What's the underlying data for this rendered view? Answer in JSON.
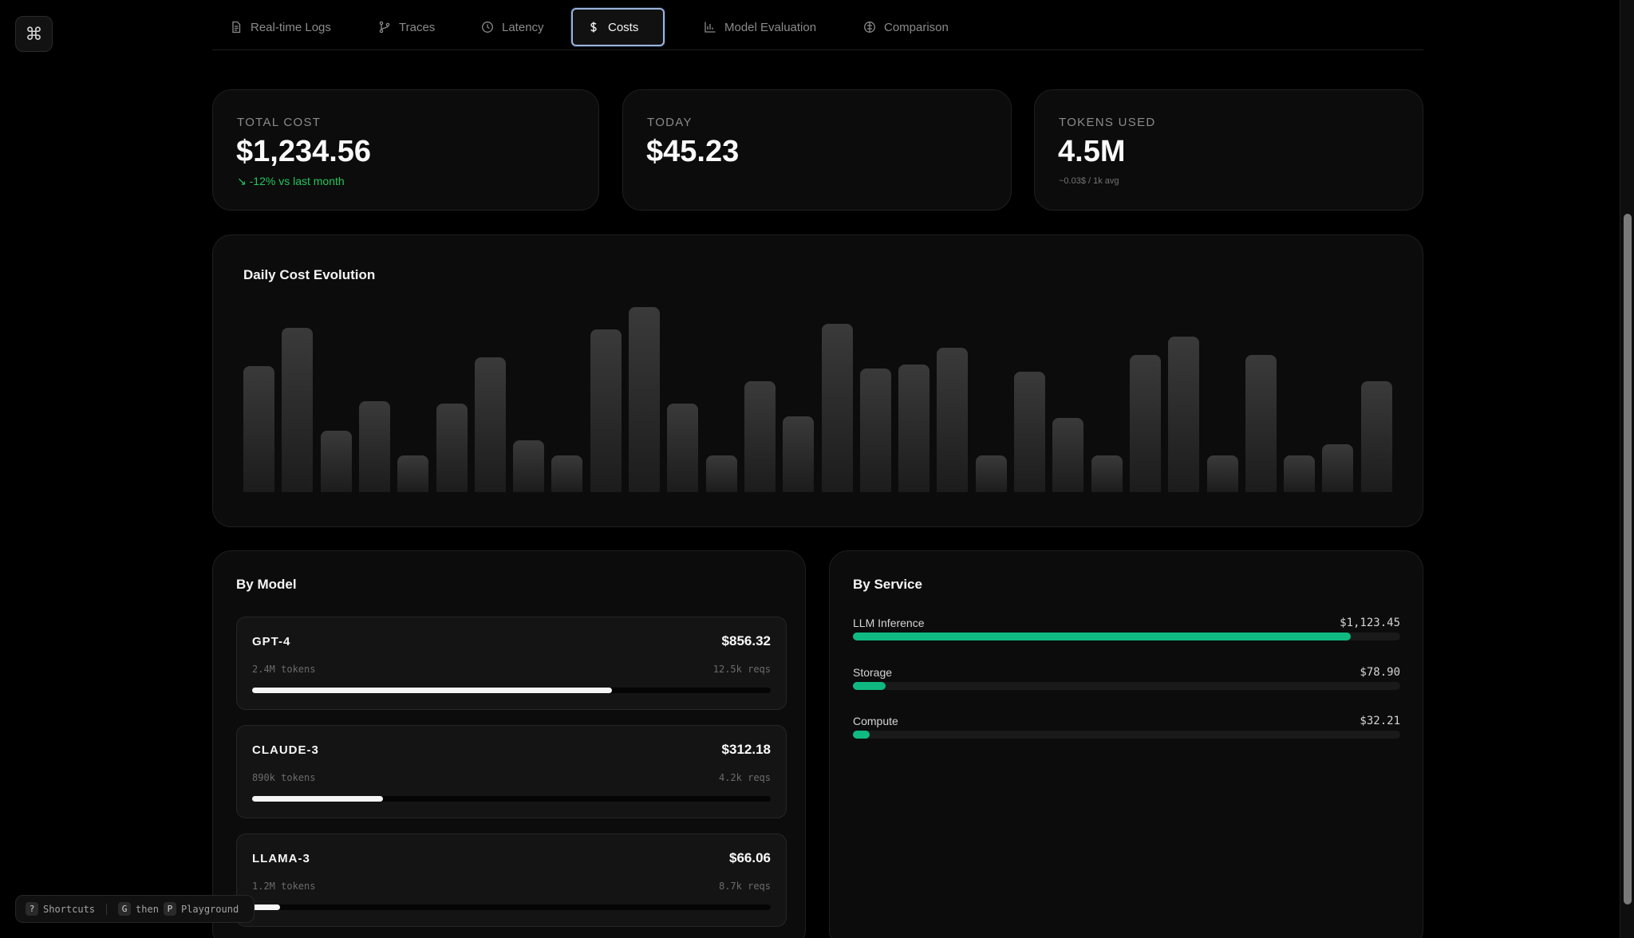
{
  "shortcut_button": {
    "glyph": "⌘"
  },
  "tabs": [
    {
      "label": "Real-time Logs",
      "icon": "document-icon",
      "active": false
    },
    {
      "label": "Traces",
      "icon": "branch-icon",
      "active": false
    },
    {
      "label": "Latency",
      "icon": "clock-icon",
      "active": false
    },
    {
      "label": "Costs",
      "icon": "dollar-icon",
      "active": true
    },
    {
      "label": "Model Evaluation",
      "icon": "bar-chart-icon",
      "active": false
    },
    {
      "label": "Comparison",
      "icon": "compare-icon",
      "active": false
    }
  ],
  "stats": {
    "total_cost": {
      "label": "TOTAL COST",
      "value": "$1,234.56",
      "sub": "-12% vs last month",
      "sub_icon": "trend-down-icon"
    },
    "today": {
      "label": "TODAY",
      "value": "$45.23"
    },
    "tokens": {
      "label": "TOKENS USED",
      "value": "4.5M",
      "sub": "~0.03$ / 1k avg"
    }
  },
  "daily": {
    "title": "Daily Cost Evolution",
    "chart_data": {
      "type": "bar",
      "values": [
        0.68,
        0.89,
        0.33,
        0.49,
        0.2,
        0.48,
        0.73,
        0.28,
        0.2,
        0.88,
        1.0,
        0.48,
        0.2,
        0.6,
        0.41,
        0.91,
        0.67,
        0.69,
        0.78,
        0.2,
        0.65,
        0.4,
        0.2,
        0.74,
        0.84,
        0.2,
        0.74,
        0.2,
        0.26,
        0.6
      ],
      "ylim": [
        0,
        1
      ]
    }
  },
  "by_model": {
    "title": "By Model",
    "items": [
      {
        "name": "GPT-4",
        "cost": "$856.32",
        "tokens": "2.4M tokens",
        "reqs": "12.5k reqs",
        "share": 0.694
      },
      {
        "name": "CLAUDE-3",
        "cost": "$312.18",
        "tokens": "890k tokens",
        "reqs": "4.2k reqs",
        "share": 0.253
      },
      {
        "name": "LLAMA-3",
        "cost": "$66.06",
        "tokens": "1.2M tokens",
        "reqs": "8.7k reqs",
        "share": 0.054
      }
    ]
  },
  "by_service": {
    "title": "By Service",
    "items": [
      {
        "name": "LLM Inference",
        "amount": "$1,123.45",
        "share": 0.91
      },
      {
        "name": "Storage",
        "amount": "$78.90",
        "share": 0.06
      },
      {
        "name": "Compute",
        "amount": "$32.21",
        "share": 0.03
      }
    ]
  },
  "footer": {
    "shortcuts_key": "?",
    "shortcuts_label": "Shortcuts",
    "g_key": "G",
    "then_label": "then",
    "p_key": "P",
    "playground_label": "Playground"
  },
  "colors": {
    "accent_green": "#10b981",
    "trend_green": "#22c55e",
    "active_tab_border": "#9ab3d9"
  }
}
